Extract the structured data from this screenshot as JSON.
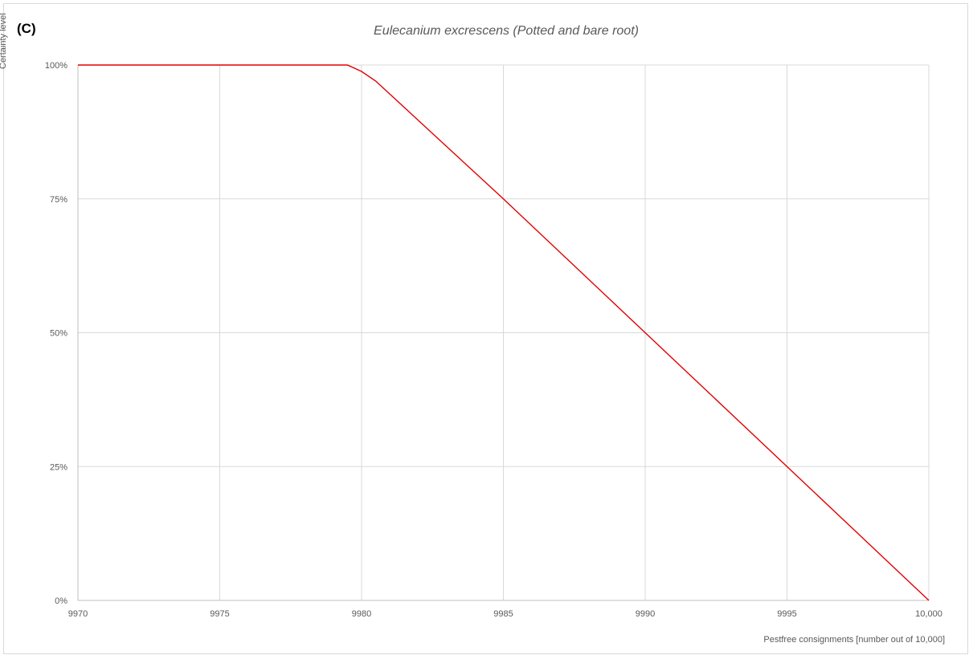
{
  "panel_label": "(C)",
  "chart_data": {
    "type": "line",
    "title": "Eulecanium excrescens (Potted and bare root)",
    "xlabel": "Pestfree consignments [number out of 10,000]",
    "ylabel": "Certainty level",
    "xlim": [
      9970,
      10000
    ],
    "ylim": [
      0,
      1
    ],
    "x_ticks": [
      9970,
      9975,
      9980,
      9985,
      9990,
      9995,
      10000
    ],
    "x_tick_labels": [
      "9970",
      "9975",
      "9980",
      "9985",
      "9990",
      "9995",
      "10,000"
    ],
    "y_ticks": [
      0,
      0.25,
      0.5,
      0.75,
      1
    ],
    "y_tick_labels": [
      "0%",
      "25%",
      "50%",
      "75%",
      "100%"
    ],
    "grid": true,
    "series": [
      {
        "color": "#e00000",
        "x": [
          9970,
          9979.5,
          9980,
          9980.5,
          9985,
          9990,
          9995,
          10000
        ],
        "y": [
          1,
          1,
          0.988,
          0.97,
          0.75,
          0.5,
          0.25,
          0
        ]
      }
    ]
  }
}
